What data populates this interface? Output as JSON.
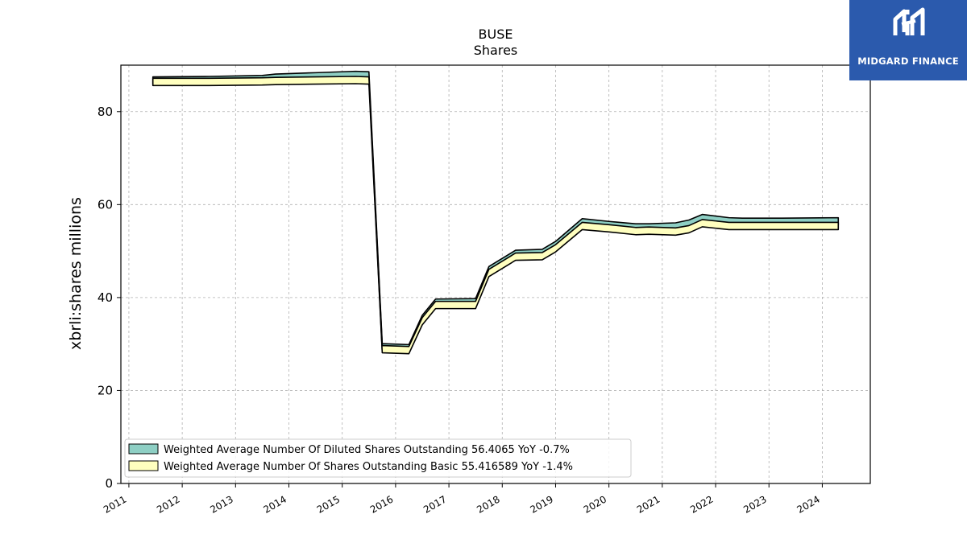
{
  "brand": {
    "name": "MIDGARD FINANCE",
    "color": "#2b5aad",
    "icon": "mf-monogram-icon"
  },
  "chart_data": {
    "type": "area",
    "title": "BUSE",
    "subtitle": "Shares",
    "ylabel": "xbrli:shares millions",
    "xlabel": "",
    "ylim": [
      0,
      90
    ],
    "xlim": [
      2010.85,
      2024.9
    ],
    "yticks": [
      0,
      20,
      40,
      60,
      80
    ],
    "xticks": [
      "2011",
      "2012",
      "2013",
      "2014",
      "2015",
      "2016",
      "2017",
      "2018",
      "2019",
      "2020",
      "2021",
      "2022",
      "2023",
      "2024"
    ],
    "grid": true,
    "legend_position": "lower-left",
    "series": [
      {
        "name": "Weighted Average Number Of Diluted Shares Outstanding",
        "legend_label": "Weighted Average Number Of Diluted Shares Outstanding  56.4065 YoY -0.7%",
        "color": "#8ecfc4",
        "points": [
          [
            2011.45,
            86.7
          ],
          [
            2012.5,
            86.8
          ],
          [
            2013.5,
            87.0
          ],
          [
            2013.75,
            87.3
          ],
          [
            2014.5,
            87.6
          ],
          [
            2015.25,
            87.9
          ],
          [
            2015.5,
            87.8
          ],
          [
            2015.75,
            29.3
          ],
          [
            2016.25,
            29.1
          ],
          [
            2016.5,
            35.4
          ],
          [
            2016.75,
            38.9
          ],
          [
            2017.5,
            39.0
          ],
          [
            2017.75,
            45.9
          ],
          [
            2018.25,
            49.4
          ],
          [
            2018.75,
            49.6
          ],
          [
            2019.0,
            51.3
          ],
          [
            2019.5,
            56.2
          ],
          [
            2020.0,
            55.6
          ],
          [
            2020.5,
            55.1
          ],
          [
            2020.75,
            55.1
          ],
          [
            2021.25,
            55.3
          ],
          [
            2021.5,
            55.9
          ],
          [
            2021.75,
            57.1
          ],
          [
            2022.25,
            56.4
          ],
          [
            2022.5,
            56.3
          ],
          [
            2023.25,
            56.3
          ],
          [
            2024.3,
            56.4
          ]
        ]
      },
      {
        "name": "Weighted Average Number Of Shares Outstanding Basic",
        "legend_label": "Weighted Average Number Of Shares Outstanding Basic  55.416589 YoY -1.4%",
        "color": "#ffffbf",
        "points": [
          [
            2011.45,
            86.4
          ],
          [
            2012.5,
            86.4
          ],
          [
            2013.5,
            86.5
          ],
          [
            2013.75,
            86.6
          ],
          [
            2014.5,
            86.7
          ],
          [
            2015.25,
            86.8
          ],
          [
            2015.5,
            86.7
          ],
          [
            2015.75,
            28.9
          ],
          [
            2016.25,
            28.7
          ],
          [
            2016.5,
            34.9
          ],
          [
            2016.75,
            38.4
          ],
          [
            2017.5,
            38.4
          ],
          [
            2017.75,
            45.3
          ],
          [
            2018.25,
            48.8
          ],
          [
            2018.75,
            48.9
          ],
          [
            2019.0,
            50.6
          ],
          [
            2019.5,
            55.4
          ],
          [
            2020.0,
            54.9
          ],
          [
            2020.5,
            54.3
          ],
          [
            2020.75,
            54.4
          ],
          [
            2021.25,
            54.2
          ],
          [
            2021.5,
            54.7
          ],
          [
            2021.75,
            56.0
          ],
          [
            2022.25,
            55.4
          ],
          [
            2022.5,
            55.4
          ],
          [
            2023.25,
            55.4
          ],
          [
            2024.3,
            55.4
          ]
        ]
      }
    ]
  }
}
